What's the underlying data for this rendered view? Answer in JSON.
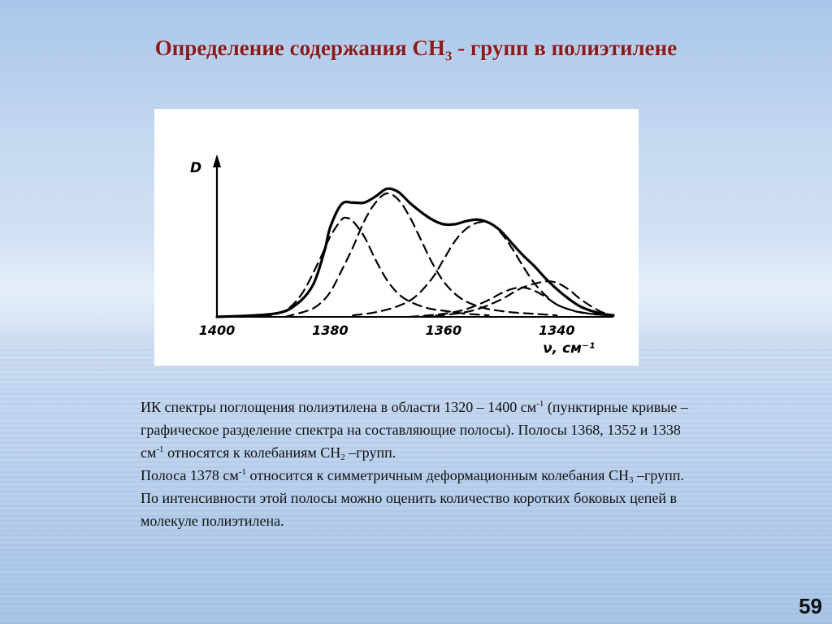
{
  "slide": {
    "title_main": "Определение содержания CH",
    "title_sub": "3",
    "title_rest": " - групп  в полиэтилене",
    "page_number": "59"
  },
  "chart_data": {
    "type": "line",
    "ylabel": "D",
    "xlabel": "ν, см⁻¹",
    "x_ticks": [
      "1400",
      "1380",
      "1360",
      "1340"
    ],
    "xlim": [
      1400,
      1330
    ],
    "ylim": [
      0,
      1.0
    ],
    "series": [
      {
        "style": "solid",
        "x": [
          1400,
          1390,
          1386,
          1383,
          1381,
          1380,
          1378,
          1376,
          1374,
          1372,
          1370,
          1368,
          1366,
          1364,
          1362,
          1360,
          1358,
          1356,
          1354,
          1352,
          1350,
          1348,
          1346,
          1344,
          1342,
          1340,
          1338,
          1336,
          1334,
          1332,
          1330
        ],
        "y": [
          0.0,
          0.02,
          0.08,
          0.21,
          0.43,
          0.58,
          0.73,
          0.74,
          0.74,
          0.78,
          0.83,
          0.81,
          0.74,
          0.68,
          0.63,
          0.6,
          0.6,
          0.62,
          0.63,
          0.61,
          0.56,
          0.48,
          0.4,
          0.33,
          0.25,
          0.18,
          0.12,
          0.07,
          0.04,
          0.02,
          0.01
        ]
      },
      {
        "style": "dashed",
        "x": [
          1392,
          1388,
          1385,
          1382,
          1380,
          1378,
          1377,
          1376,
          1374,
          1372,
          1370,
          1368,
          1366,
          1364,
          1362,
          1360,
          1358,
          1356,
          1352
        ],
        "y": [
          0.0,
          0.04,
          0.15,
          0.36,
          0.52,
          0.63,
          0.64,
          0.62,
          0.52,
          0.37,
          0.24,
          0.15,
          0.1,
          0.07,
          0.05,
          0.04,
          0.03,
          0.02,
          0.01
        ]
      },
      {
        "style": "dashed",
        "x": [
          1388,
          1384,
          1382,
          1380,
          1378,
          1376,
          1374,
          1372,
          1370,
          1368,
          1366,
          1364,
          1362,
          1360,
          1358,
          1356,
          1354,
          1352,
          1348,
          1344,
          1340
        ],
        "y": [
          0.0,
          0.04,
          0.08,
          0.16,
          0.3,
          0.45,
          0.62,
          0.74,
          0.8,
          0.76,
          0.65,
          0.5,
          0.35,
          0.23,
          0.15,
          0.1,
          0.07,
          0.05,
          0.03,
          0.02,
          0.01
        ]
      },
      {
        "style": "dashed",
        "x": [
          1376,
          1372,
          1368,
          1365,
          1362,
          1360,
          1358,
          1356,
          1354,
          1352,
          1350,
          1348,
          1346,
          1344,
          1342,
          1340,
          1337,
          1334,
          1331
        ],
        "y": [
          0.01,
          0.03,
          0.07,
          0.13,
          0.25,
          0.37,
          0.49,
          0.57,
          0.61,
          0.61,
          0.55,
          0.45,
          0.33,
          0.22,
          0.14,
          0.08,
          0.04,
          0.02,
          0.01
        ]
      },
      {
        "style": "dashed",
        "x": [
          1366,
          1360,
          1356,
          1352,
          1350,
          1348,
          1346,
          1344,
          1342,
          1340,
          1338,
          1336,
          1334,
          1331
        ],
        "y": [
          0.0,
          0.02,
          0.05,
          0.11,
          0.15,
          0.18,
          0.19,
          0.17,
          0.13,
          0.08,
          0.05,
          0.03,
          0.02,
          0.01
        ]
      },
      {
        "style": "dashed",
        "x": [
          1364,
          1358,
          1354,
          1350,
          1346,
          1342,
          1340,
          1338,
          1336,
          1334,
          1332,
          1330
        ],
        "y": [
          0.0,
          0.02,
          0.05,
          0.11,
          0.19,
          0.23,
          0.22,
          0.18,
          0.12,
          0.07,
          0.03,
          0.01
        ]
      }
    ]
  },
  "caption": {
    "p1": {
      "a": "ИК спектры поглощения полиэтилена в области 1320 – 1400 см",
      "a_sup": "-1",
      "b": " (пунктирные кривые –графическое разделение спектра на составляющие полосы). Полосы 1368, 1352 и  1338 см",
      "b_sup": "-1",
      "c": " относятся к колебаниям CH",
      "c_sub": "2",
      "d": " –групп."
    },
    "p2": {
      "a": "Полоса 1378 см",
      "a_sup": "-1",
      "b": "  относится к симметричным  деформационным колебания CH",
      "b_sub": "3",
      "c": " –групп.  По интенсивности  этой полосы можно оценить количество коротких боковых цепей в молекуле полиэтилена."
    }
  }
}
